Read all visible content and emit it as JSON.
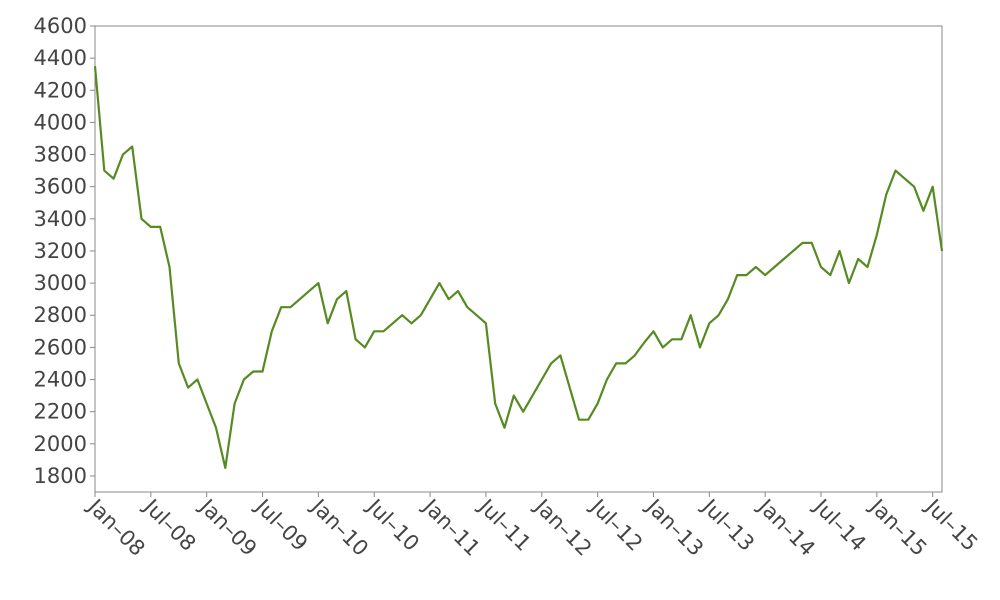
{
  "chart_data": {
    "type": "line",
    "x": [
      "2008-01",
      "2008-02",
      "2008-03",
      "2008-04",
      "2008-05",
      "2008-06",
      "2008-07",
      "2008-08",
      "2008-09",
      "2008-10",
      "2008-11",
      "2008-12",
      "2009-01",
      "2009-02",
      "2009-03",
      "2009-04",
      "2009-05",
      "2009-06",
      "2009-07",
      "2009-08",
      "2009-09",
      "2009-10",
      "2009-11",
      "2009-12",
      "2010-01",
      "2010-02",
      "2010-03",
      "2010-04",
      "2010-05",
      "2010-06",
      "2010-07",
      "2010-08",
      "2010-09",
      "2010-10",
      "2010-11",
      "2010-12",
      "2011-01",
      "2011-02",
      "2011-03",
      "2011-04",
      "2011-05",
      "2011-06",
      "2011-07",
      "2011-08",
      "2011-09",
      "2011-10",
      "2011-11",
      "2011-12",
      "2012-01",
      "2012-02",
      "2012-03",
      "2012-04",
      "2012-05",
      "2012-06",
      "2012-07",
      "2012-08",
      "2012-09",
      "2012-10",
      "2012-11",
      "2012-12",
      "2013-01",
      "2013-02",
      "2013-03",
      "2013-04",
      "2013-05",
      "2013-06",
      "2013-07",
      "2013-08",
      "2013-09",
      "2013-10",
      "2013-11",
      "2013-12",
      "2014-01",
      "2014-02",
      "2014-03",
      "2014-04",
      "2014-05",
      "2014-06",
      "2014-07",
      "2014-08",
      "2014-09",
      "2014-10",
      "2014-11",
      "2014-12",
      "2015-01",
      "2015-02",
      "2015-03",
      "2015-04",
      "2015-05",
      "2015-06",
      "2015-07",
      "2015-08"
    ],
    "series": [
      {
        "color": "#558b22",
        "values": [
          4350,
          3700,
          3650,
          3800,
          3850,
          3400,
          3350,
          3350,
          3100,
          2500,
          2350,
          2400,
          2250,
          2100,
          1850,
          2250,
          2400,
          2450,
          2450,
          2700,
          2850,
          2850,
          2900,
          2950,
          3000,
          2750,
          2900,
          2950,
          2650,
          2600,
          2700,
          2700,
          2750,
          2800,
          2750,
          2800,
          2900,
          3000,
          2900,
          2950,
          2850,
          2800,
          2750,
          2250,
          2100,
          2300,
          2200,
          2300,
          2400,
          2500,
          2550,
          2350,
          2150,
          2150,
          2250,
          2400,
          2500,
          2500,
          2550,
          2630,
          2700,
          2600,
          2650,
          2650,
          2800,
          2600,
          2750,
          2800,
          2900,
          3050,
          3050,
          3100,
          3050,
          3100,
          3150,
          3200,
          3250,
          3250,
          3100,
          3050,
          3200,
          3000,
          3150,
          3100,
          3300,
          3550,
          3700,
          3650,
          3600,
          3450,
          3600,
          3200
        ]
      }
    ],
    "xlim": [
      "2008-01",
      "2015-08"
    ],
    "xticks": [
      {
        "value": "2008-01",
        "label": "Jan–08"
      },
      {
        "value": "2008-07",
        "label": "Jul–08"
      },
      {
        "value": "2009-01",
        "label": "Jan–09"
      },
      {
        "value": "2009-07",
        "label": "Jul–09"
      },
      {
        "value": "2010-01",
        "label": "Jan–10"
      },
      {
        "value": "2010-07",
        "label": "Jul–10"
      },
      {
        "value": "2011-01",
        "label": "Jan–11"
      },
      {
        "value": "2011-07",
        "label": "Jul–11"
      },
      {
        "value": "2012-01",
        "label": "Jan–12"
      },
      {
        "value": "2012-07",
        "label": "Jul–12"
      },
      {
        "value": "2013-01",
        "label": "Jan–13"
      },
      {
        "value": "2013-07",
        "label": "Jul–13"
      },
      {
        "value": "2014-01",
        "label": "Jan–14"
      },
      {
        "value": "2014-07",
        "label": "Jul–14"
      },
      {
        "value": "2015-01",
        "label": "Jan–15"
      },
      {
        "value": "2015-07",
        "label": "Jul–15"
      }
    ],
    "ylim": [
      1700,
      4600
    ],
    "yticks": [
      1800,
      2000,
      2200,
      2400,
      2600,
      2800,
      3000,
      3200,
      3400,
      3600,
      3800,
      4000,
      4200,
      4400,
      4600
    ]
  }
}
